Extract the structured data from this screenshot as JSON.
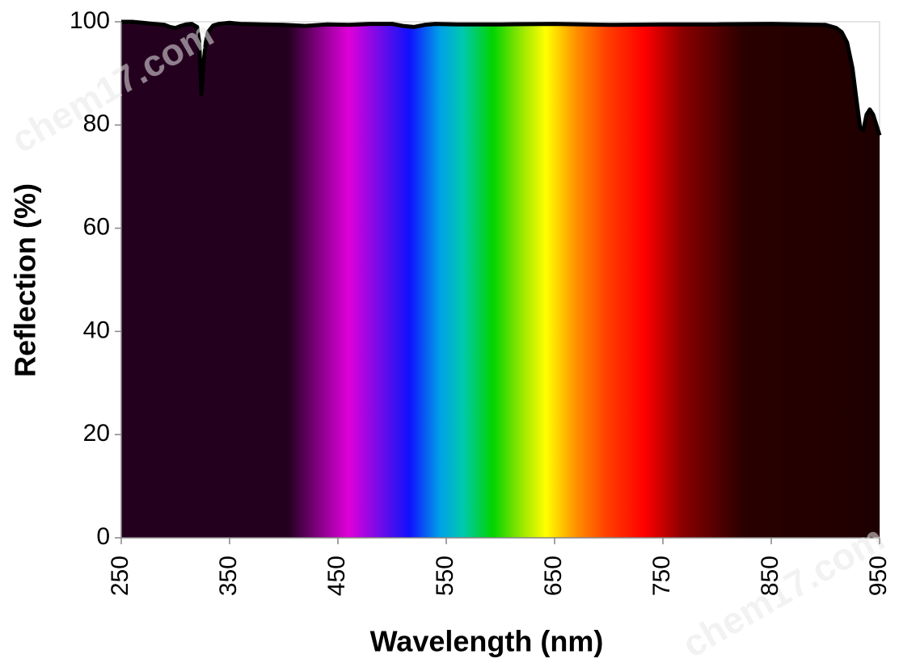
{
  "chart_data": {
    "type": "area",
    "x_label": "Wavelength (nm)",
    "y_label": "Reflection (%)",
    "watermark": "chem17.com",
    "x": [
      250,
      260,
      270,
      280,
      290,
      295,
      300,
      305,
      310,
      315,
      320,
      322,
      324,
      326,
      328,
      330,
      335,
      340,
      350,
      360,
      380,
      400,
      420,
      440,
      460,
      480,
      500,
      510,
      520,
      530,
      540,
      560,
      600,
      650,
      700,
      750,
      800,
      850,
      900,
      910,
      915,
      920,
      925,
      928,
      932,
      935,
      938,
      941,
      944,
      947,
      950
    ],
    "series": [
      {
        "color": "#000000",
        "values": [
          100,
          100,
          99.8,
          99.6,
          99.4,
          99,
          98.8,
          99.2,
          99.5,
          99.6,
          99,
          96,
          86,
          92,
          96,
          98,
          99.3,
          99.6,
          99.8,
          99.6,
          99.5,
          99.4,
          99.2,
          99.5,
          99.4,
          99.6,
          99.6,
          99.2,
          99,
          99.4,
          99.6,
          99.5,
          99.5,
          99.6,
          99.4,
          99.5,
          99.5,
          99.6,
          99.4,
          98.8,
          98,
          96,
          91,
          86,
          79.5,
          79,
          82,
          83,
          82,
          80,
          78
        ]
      }
    ],
    "xlim": [
      250,
      950
    ],
    "xticks": [
      250,
      350,
      450,
      550,
      650,
      750,
      850,
      950
    ],
    "ylim": [
      0,
      100
    ],
    "yticks": [
      0,
      20,
      40,
      60,
      80,
      100
    ]
  }
}
